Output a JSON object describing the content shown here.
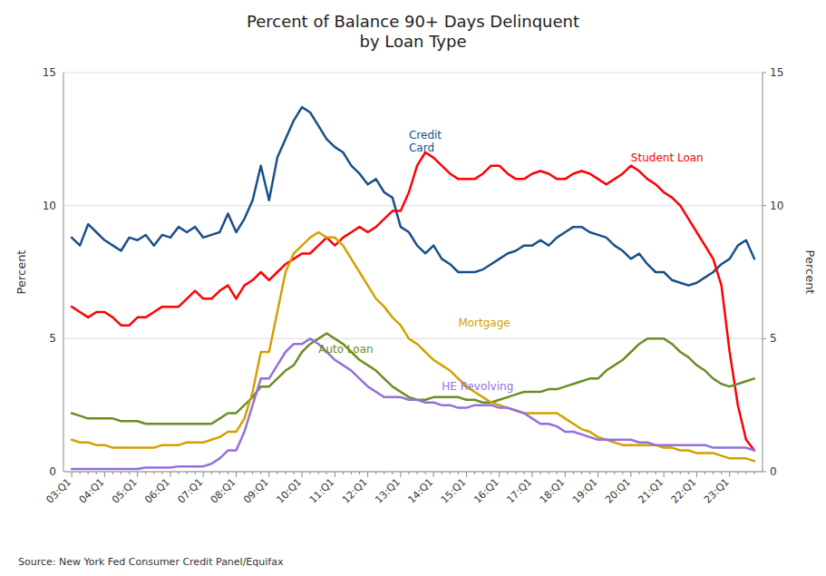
{
  "chart_data": {
    "type": "line",
    "title": "Percent of Balance 90+ Days Delinquent\nby Loan Type",
    "ylabel": "Percent",
    "y2label": "Percent",
    "source": "Source: New York Fed Consumer Credit Panel/Equifax",
    "categories": [
      "03:Q1",
      null,
      null,
      null,
      "04:Q1",
      null,
      null,
      null,
      "05:Q1",
      null,
      null,
      null,
      "06:Q1",
      null,
      null,
      null,
      "07:Q1",
      null,
      null,
      null,
      "08:Q1",
      null,
      null,
      null,
      "09:Q1",
      null,
      null,
      null,
      "10:Q1",
      null,
      null,
      null,
      "11:Q1",
      null,
      null,
      null,
      "12:Q1",
      null,
      null,
      null,
      "13:Q1",
      null,
      null,
      null,
      "14:Q1",
      null,
      null,
      null,
      "15:Q1",
      null,
      null,
      null,
      "16:Q1",
      null,
      null,
      null,
      "17:Q1",
      null,
      null,
      null,
      "18:Q1",
      null,
      null,
      null,
      "19:Q1",
      null,
      null,
      null,
      "20:Q1",
      null,
      null,
      null,
      "21:Q1",
      null,
      null,
      null,
      "22:Q1",
      null,
      null,
      null,
      "23:Q1",
      null,
      null,
      null
    ],
    "ylim": [
      0,
      15
    ],
    "yticks": [
      0,
      5,
      10,
      15
    ],
    "y2lim": [
      0,
      15
    ],
    "y2ticks": [
      0,
      5,
      10,
      15
    ],
    "grid": true,
    "series": [
      {
        "name": "Credit Card",
        "color": "#1a4f8a",
        "values": [
          8.8,
          8.5,
          9.3,
          9.0,
          8.7,
          8.5,
          8.3,
          8.8,
          8.7,
          8.9,
          8.5,
          8.9,
          8.8,
          9.2,
          9.0,
          9.2,
          8.8,
          8.9,
          9.0,
          9.7,
          9.0,
          9.5,
          10.2,
          11.5,
          10.2,
          11.8,
          12.5,
          13.2,
          13.7,
          13.5,
          13.0,
          12.5,
          12.2,
          12.0,
          11.5,
          11.2,
          10.8,
          11.0,
          10.5,
          10.3,
          9.2,
          9.0,
          8.5,
          8.2,
          8.5,
          8.0,
          7.8,
          7.5,
          7.5,
          7.5,
          7.6,
          7.8,
          8.0,
          8.2,
          8.3,
          8.5,
          8.5,
          8.7,
          8.5,
          8.8,
          9.0,
          9.2,
          9.2,
          9.0,
          8.9,
          8.8,
          8.5,
          8.3,
          8.0,
          8.2,
          7.8,
          7.5,
          7.5,
          7.2,
          7.1,
          7.0,
          7.1,
          7.3,
          7.5,
          7.8,
          8.0,
          8.5,
          8.7,
          8.0
        ]
      },
      {
        "name": "Student Loan",
        "color": "#ff0000",
        "values": [
          6.2,
          6.0,
          5.8,
          6.0,
          6.0,
          5.8,
          5.5,
          5.5,
          5.8,
          5.8,
          6.0,
          6.2,
          6.2,
          6.2,
          6.5,
          6.8,
          6.5,
          6.5,
          6.8,
          7.0,
          6.5,
          7.0,
          7.2,
          7.5,
          7.2,
          7.5,
          7.8,
          8.0,
          8.2,
          8.2,
          8.5,
          8.8,
          8.5,
          8.8,
          9.0,
          9.2,
          9.0,
          9.2,
          9.5,
          9.8,
          9.8,
          10.5,
          11.5,
          12.0,
          11.8,
          11.5,
          11.2,
          11.0,
          11.0,
          11.0,
          11.2,
          11.5,
          11.5,
          11.2,
          11.0,
          11.0,
          11.2,
          11.3,
          11.2,
          11.0,
          11.0,
          11.2,
          11.3,
          11.2,
          11.0,
          10.8,
          11.0,
          11.2,
          11.5,
          11.3,
          11.0,
          10.8,
          10.5,
          10.3,
          10.0,
          9.5,
          9.0,
          8.5,
          8.0,
          7.0,
          4.5,
          2.5,
          1.2,
          0.8
        ]
      },
      {
        "name": "Auto Loan",
        "color": "#6b8e23",
        "values": [
          2.2,
          2.1,
          2.0,
          2.0,
          2.0,
          2.0,
          1.9,
          1.9,
          1.9,
          1.8,
          1.8,
          1.8,
          1.8,
          1.8,
          1.8,
          1.8,
          1.8,
          1.8,
          2.0,
          2.2,
          2.2,
          2.5,
          2.8,
          3.2,
          3.2,
          3.5,
          3.8,
          4.0,
          4.5,
          4.8,
          5.0,
          5.2,
          5.0,
          4.8,
          4.5,
          4.2,
          4.0,
          3.8,
          3.5,
          3.2,
          3.0,
          2.8,
          2.7,
          2.7,
          2.8,
          2.8,
          2.8,
          2.8,
          2.7,
          2.7,
          2.6,
          2.6,
          2.7,
          2.8,
          2.9,
          3.0,
          3.0,
          3.0,
          3.1,
          3.1,
          3.2,
          3.3,
          3.4,
          3.5,
          3.5,
          3.8,
          4.0,
          4.2,
          4.5,
          4.8,
          5.0,
          5.0,
          5.0,
          4.8,
          4.5,
          4.3,
          4.0,
          3.8,
          3.5,
          3.3,
          3.2,
          3.3,
          3.4,
          3.5
        ]
      },
      {
        "name": "Mortgage",
        "color": "#d4a000",
        "values": [
          1.2,
          1.1,
          1.1,
          1.0,
          1.0,
          0.9,
          0.9,
          0.9,
          0.9,
          0.9,
          0.9,
          1.0,
          1.0,
          1.0,
          1.1,
          1.1,
          1.1,
          1.2,
          1.3,
          1.5,
          1.5,
          2.0,
          3.0,
          4.5,
          4.5,
          6.0,
          7.5,
          8.2,
          8.5,
          8.8,
          9.0,
          8.8,
          8.8,
          8.5,
          8.0,
          7.5,
          7.0,
          6.5,
          6.2,
          5.8,
          5.5,
          5.0,
          4.8,
          4.5,
          4.2,
          4.0,
          3.8,
          3.5,
          3.2,
          3.0,
          2.8,
          2.6,
          2.5,
          2.4,
          2.3,
          2.2,
          2.2,
          2.2,
          2.2,
          2.2,
          2.0,
          1.8,
          1.6,
          1.5,
          1.3,
          1.2,
          1.1,
          1.0,
          1.0,
          1.0,
          1.0,
          1.0,
          0.9,
          0.9,
          0.8,
          0.8,
          0.7,
          0.7,
          0.7,
          0.6,
          0.5,
          0.5,
          0.5,
          0.4
        ]
      },
      {
        "name": "HE Revolving",
        "color": "#9370db",
        "values": [
          0.1,
          0.1,
          0.1,
          0.1,
          0.1,
          0.1,
          0.1,
          0.1,
          0.1,
          0.15,
          0.15,
          0.15,
          0.15,
          0.2,
          0.2,
          0.2,
          0.2,
          0.3,
          0.5,
          0.8,
          0.8,
          1.5,
          2.5,
          3.5,
          3.5,
          4.0,
          4.5,
          4.8,
          4.8,
          5.0,
          4.8,
          4.5,
          4.2,
          4.0,
          3.8,
          3.5,
          3.2,
          3.0,
          2.8,
          2.8,
          2.8,
          2.7,
          2.7,
          2.6,
          2.6,
          2.5,
          2.5,
          2.4,
          2.4,
          2.5,
          2.5,
          2.5,
          2.4,
          2.4,
          2.3,
          2.2,
          2.0,
          1.8,
          1.8,
          1.7,
          1.5,
          1.5,
          1.4,
          1.3,
          1.2,
          1.2,
          1.2,
          1.2,
          1.2,
          1.1,
          1.1,
          1.0,
          1.0,
          1.0,
          1.0,
          1.0,
          1.0,
          1.0,
          0.9,
          0.9,
          0.9,
          0.9,
          0.9,
          0.8
        ]
      }
    ],
    "annotations": [
      {
        "text": "Credit\nCard",
        "x": 41,
        "y": 12.4,
        "color": "#1a4f8a"
      },
      {
        "text": "Student Loan",
        "x": 68,
        "y": 11.8,
        "color": "#ff0000"
      },
      {
        "text": "Auto Loan",
        "x": 30,
        "y": 4.6,
        "color": "#6b8e23"
      },
      {
        "text": "Mortgage",
        "x": 47,
        "y": 5.6,
        "color": "#d4a000"
      },
      {
        "text": "HE Revolving",
        "x": 45,
        "y": 3.2,
        "color": "#9370db"
      }
    ]
  }
}
